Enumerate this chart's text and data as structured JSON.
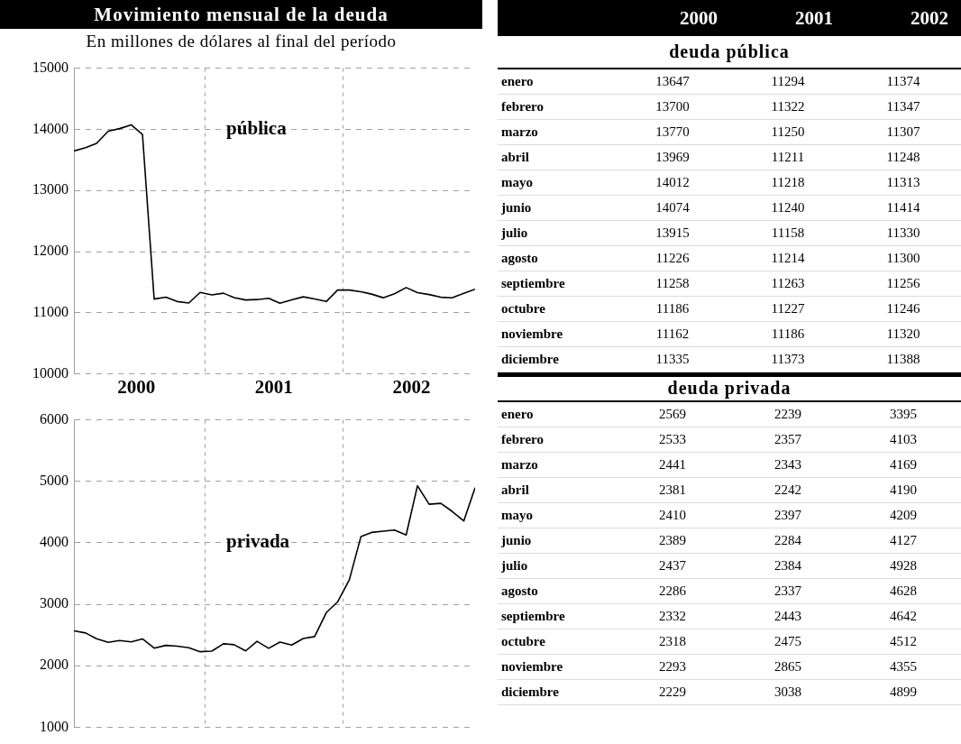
{
  "chart_data": [
    {
      "type": "line",
      "title": "Movimiento mensual de la deuda",
      "subtitle": "En millones de dólares al final del período",
      "x": [
        "2000-01",
        "2000-02",
        "2000-03",
        "2000-04",
        "2000-05",
        "2000-06",
        "2000-07",
        "2000-08",
        "2000-09",
        "2000-10",
        "2000-11",
        "2000-12",
        "2001-01",
        "2001-02",
        "2001-03",
        "2001-04",
        "2001-05",
        "2001-06",
        "2001-07",
        "2001-08",
        "2001-09",
        "2001-10",
        "2001-11",
        "2001-12",
        "2002-01",
        "2002-02",
        "2002-03",
        "2002-04",
        "2002-05",
        "2002-06",
        "2002-07",
        "2002-08",
        "2002-09",
        "2002-10",
        "2002-11",
        "2002-12"
      ],
      "series": [
        {
          "name": "pública",
          "color": "#000000",
          "values": [
            13647,
            13700,
            13770,
            13969,
            14012,
            14074,
            13915,
            11226,
            11258,
            11186,
            11162,
            11335,
            11294,
            11322,
            11250,
            11211,
            11218,
            11240,
            11158,
            11214,
            11263,
            11227,
            11186,
            11373,
            11374,
            11347,
            11307,
            11248,
            11313,
            11414,
            11330,
            11300,
            11256,
            11246,
            11320,
            11388
          ]
        }
      ],
      "xlim": [
        "2000-01",
        "2002-12"
      ],
      "xticks": [
        {
          "value": "2000-06-15",
          "label": "2000"
        },
        {
          "value": "2000-12-15",
          "label": null
        },
        {
          "value": "2001-06-15",
          "label": "2001"
        },
        {
          "value": "2001-12-15",
          "label": null
        },
        {
          "value": "2002-06-15",
          "label": "2002"
        }
      ],
      "ylim": [
        10000,
        15000
      ],
      "yticks": [
        10000,
        11000,
        12000,
        13000,
        14000,
        15000
      ],
      "grid": true,
      "marker": "none",
      "line_style": "solid"
    },
    {
      "type": "line",
      "x": [
        "2000-01",
        "2000-02",
        "2000-03",
        "2000-04",
        "2000-05",
        "2000-06",
        "2000-07",
        "2000-08",
        "2000-09",
        "2000-10",
        "2000-11",
        "2000-12",
        "2001-01",
        "2001-02",
        "2001-03",
        "2001-04",
        "2001-05",
        "2001-06",
        "2001-07",
        "2001-08",
        "2001-09",
        "2001-10",
        "2001-11",
        "2001-12",
        "2002-01",
        "2002-02",
        "2002-03",
        "2002-04",
        "2002-05",
        "2002-06",
        "2002-07",
        "2002-08",
        "2002-09",
        "2002-10",
        "2002-11",
        "2002-12"
      ],
      "series": [
        {
          "name": "privada",
          "color": "#000000",
          "values": [
            2569,
            2533,
            2441,
            2381,
            2410,
            2389,
            2437,
            2286,
            2332,
            2318,
            2293,
            2229,
            2239,
            2357,
            2343,
            2242,
            2397,
            2284,
            2384,
            2337,
            2443,
            2475,
            2865,
            3038,
            3395,
            4103,
            4169,
            4190,
            4209,
            4127,
            4928,
            4628,
            4642,
            4512,
            4355,
            4899
          ]
        }
      ],
      "xlim": [
        "2000-01",
        "2002-12"
      ],
      "xticks": [
        {
          "value": "2000-12-15",
          "label": null
        },
        {
          "value": "2001-12-15",
          "label": null
        }
      ],
      "ylim": [
        1000,
        6000
      ],
      "yticks": [
        1000,
        2000,
        3000,
        4000,
        5000,
        6000
      ],
      "tick_labels": "y",
      "grid": true,
      "marker": "none",
      "line_style": "solid"
    },
    {
      "type": "heatmap",
      "title": "deuda pública",
      "categories": [
        "2000",
        "2001",
        "2002"
      ],
      "y_categories": [
        "enero",
        "febrero",
        "marzo",
        "abril",
        "mayo",
        "junio",
        "julio",
        "agosto",
        "septiembre",
        "octubre",
        "noviembre",
        "diciembre"
      ],
      "data_labels": true,
      "cells": [
        [
          13647,
          11294,
          11374
        ],
        [
          13700,
          11322,
          11347
        ],
        [
          13770,
          11250,
          11307
        ],
        [
          13969,
          11211,
          11248
        ],
        [
          14012,
          11218,
          11313
        ],
        [
          14074,
          11240,
          11414
        ],
        [
          13915,
          11158,
          11330
        ],
        [
          11226,
          11214,
          11300
        ],
        [
          11258,
          11263,
          11256
        ],
        [
          11186,
          11227,
          11246
        ],
        [
          11162,
          11186,
          11320
        ],
        [
          11335,
          11373,
          11388
        ]
      ]
    },
    {
      "type": "heatmap",
      "title": "deuda privada",
      "categories": [
        null,
        null,
        null
      ],
      "y_categories": [
        "enero",
        "febrero",
        "marzo",
        "abril",
        "mayo",
        "junio",
        "julio",
        "agosto",
        "septiembre",
        "octubre",
        "noviembre",
        "diciembre"
      ],
      "data_labels": true,
      "cells": [
        [
          2569,
          2239,
          3395
        ],
        [
          2533,
          2357,
          4103
        ],
        [
          2441,
          2343,
          4169
        ],
        [
          2381,
          2242,
          4190
        ],
        [
          2410,
          2397,
          4209
        ],
        [
          2389,
          2284,
          4127
        ],
        [
          2437,
          2384,
          4928
        ],
        [
          2286,
          2337,
          4628
        ],
        [
          2332,
          2443,
          4642
        ],
        [
          2318,
          2475,
          4512
        ],
        [
          2293,
          2865,
          4355
        ],
        [
          2229,
          3038,
          4899
        ]
      ]
    }
  ]
}
